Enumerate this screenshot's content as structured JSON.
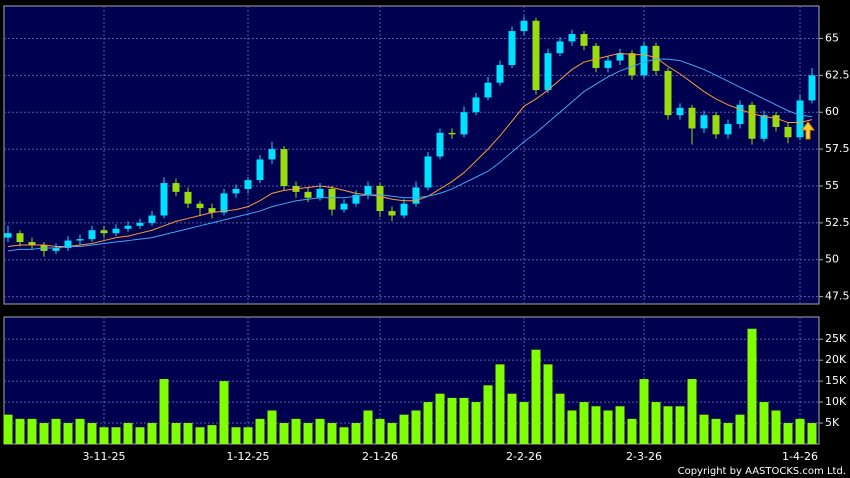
{
  "chart_data": [
    {
      "type": "candlestick",
      "categories": [
        null,
        null,
        null,
        null,
        null,
        null,
        null,
        null,
        "3-11-25",
        null,
        null,
        null,
        null,
        null,
        null,
        null,
        null,
        null,
        null,
        null,
        "1-12-25",
        null,
        null,
        null,
        null,
        null,
        null,
        null,
        null,
        null,
        null,
        "2-1-26",
        null,
        null,
        null,
        null,
        null,
        null,
        null,
        null,
        null,
        null,
        null,
        "2-2-26",
        null,
        null,
        null,
        null,
        null,
        null,
        null,
        null,
        null,
        "2-3-26",
        null,
        null,
        null,
        null,
        null,
        null,
        null,
        null,
        null,
        null,
        null,
        null,
        "1-4-26",
        null
      ],
      "up_color": "#00e0ff",
      "down_color": "#99dd11",
      "open": [
        51.5,
        51.8,
        51.2,
        51.0,
        50.6,
        50.8,
        51.3,
        51.4,
        52.0,
        51.8,
        52.1,
        52.3,
        52.5,
        53.0,
        55.2,
        54.6,
        53.8,
        53.5,
        53.2,
        54.5,
        54.8,
        55.4,
        56.8,
        57.5,
        55.0,
        54.6,
        54.2,
        54.8,
        53.4,
        53.8,
        54.4,
        55.0,
        53.3,
        53.0,
        53.8,
        54.9,
        57.0,
        58.6,
        58.5,
        60.0,
        61.0,
        62.0,
        63.2,
        65.5,
        66.2,
        61.5,
        64.0,
        64.8,
        65.3,
        64.5,
        63.0,
        63.5,
        64.0,
        62.5,
        64.5,
        62.8,
        59.8,
        60.3,
        58.9,
        59.8,
        58.5,
        59.2,
        60.5,
        58.2,
        59.8,
        59.0,
        58.3,
        60.8
      ],
      "high": [
        52.3,
        52.0,
        51.5,
        51.2,
        51.1,
        51.6,
        51.7,
        52.3,
        52.3,
        52.4,
        52.6,
        52.8,
        53.3,
        55.6,
        55.5,
        54.9,
        54.0,
        53.8,
        54.8,
        55.1,
        55.6,
        57.1,
        58.0,
        57.7,
        55.3,
        54.9,
        55.2,
        55.0,
        54.1,
        54.7,
        55.3,
        55.2,
        53.6,
        54.1,
        55.3,
        57.3,
        58.9,
        58.9,
        60.4,
        61.3,
        62.4,
        63.5,
        65.8,
        66.5,
        66.4,
        64.3,
        65.1,
        65.6,
        65.5,
        64.7,
        63.8,
        64.3,
        64.2,
        64.8,
        64.7,
        63.0,
        60.6,
        60.5,
        60.1,
        60.0,
        59.5,
        60.8,
        60.7,
        60.1,
        60.0,
        59.3,
        61.2,
        63.0
      ],
      "low": [
        51.2,
        50.9,
        50.7,
        50.2,
        50.4,
        50.6,
        51.0,
        51.2,
        51.5,
        51.6,
        51.9,
        52.1,
        52.3,
        52.8,
        54.3,
        53.5,
        53.0,
        52.8,
        53.0,
        54.2,
        54.5,
        55.2,
        56.5,
        54.7,
        54.2,
        53.9,
        54.0,
        53.0,
        53.2,
        53.6,
        54.1,
        52.9,
        52.6,
        52.8,
        53.6,
        54.7,
        56.8,
        58.2,
        58.3,
        59.8,
        60.8,
        61.8,
        63.0,
        65.2,
        61.2,
        61.3,
        63.8,
        64.5,
        64.2,
        62.7,
        62.7,
        63.2,
        62.2,
        62.3,
        62.5,
        59.5,
        59.5,
        57.8,
        58.6,
        58.2,
        58.2,
        58.9,
        57.8,
        58.0,
        58.7,
        57.9,
        58.1,
        60.6
      ],
      "close": [
        51.8,
        51.2,
        51.0,
        50.6,
        50.8,
        51.3,
        51.4,
        52.0,
        51.8,
        52.1,
        52.3,
        52.5,
        53.0,
        55.2,
        54.6,
        53.8,
        53.5,
        53.2,
        54.5,
        54.8,
        55.4,
        56.8,
        57.5,
        55.0,
        54.6,
        54.2,
        54.8,
        53.4,
        53.8,
        54.4,
        55.0,
        53.3,
        53.0,
        53.8,
        54.9,
        57.0,
        58.6,
        58.5,
        60.0,
        61.0,
        62.0,
        63.2,
        65.5,
        66.2,
        61.5,
        64.0,
        64.8,
        65.3,
        64.5,
        63.0,
        63.5,
        64.0,
        62.5,
        64.5,
        62.8,
        59.8,
        60.3,
        58.9,
        59.8,
        58.5,
        59.2,
        60.5,
        58.2,
        59.8,
        59.0,
        58.3,
        60.8,
        62.5
      ],
      "lines": [
        {
          "color": "#ff9933",
          "values": [
            50.9,
            51.0,
            51.0,
            51.0,
            50.9,
            50.9,
            51.0,
            51.1,
            51.3,
            51.5,
            51.6,
            51.8,
            52.0,
            52.3,
            52.6,
            52.8,
            53.0,
            53.2,
            53.3,
            53.4,
            53.6,
            54.0,
            54.5,
            54.7,
            54.8,
            54.9,
            55.0,
            54.9,
            54.7,
            54.5,
            54.4,
            54.3,
            54.1,
            54.0,
            54.0,
            54.3,
            54.8,
            55.3,
            55.9,
            56.7,
            57.5,
            58.4,
            59.4,
            60.4,
            60.9,
            61.5,
            62.2,
            62.9,
            63.4,
            63.6,
            63.8,
            64.0,
            63.9,
            63.9,
            63.7,
            63.1,
            62.6,
            62.0,
            61.4,
            60.9,
            60.5,
            60.2,
            59.9,
            59.7,
            59.6,
            59.3,
            59.3,
            59.5
          ]
        },
        {
          "color": "#3fa9f5",
          "values": [
            50.6,
            50.7,
            50.7,
            50.8,
            50.8,
            50.9,
            50.9,
            51.0,
            51.1,
            51.2,
            51.3,
            51.4,
            51.5,
            51.7,
            51.9,
            52.1,
            52.3,
            52.5,
            52.7,
            52.9,
            53.1,
            53.3,
            53.6,
            53.8,
            54.0,
            54.1,
            54.2,
            54.2,
            54.2,
            54.3,
            54.4,
            54.4,
            54.3,
            54.2,
            54.2,
            54.3,
            54.5,
            54.8,
            55.2,
            55.6,
            56.0,
            56.6,
            57.3,
            58.0,
            58.6,
            59.3,
            60.0,
            60.7,
            61.4,
            61.9,
            62.4,
            62.8,
            63.1,
            63.4,
            63.6,
            63.6,
            63.5,
            63.2,
            62.9,
            62.5,
            62.1,
            61.7,
            61.3,
            60.9,
            60.5,
            60.1,
            59.8,
            59.7
          ]
        }
      ],
      "ylim": [
        47.0,
        67.2
      ],
      "yticks": [
        47.5,
        50,
        52.5,
        55,
        57.5,
        60,
        62.5,
        65
      ],
      "grid": true
    },
    {
      "type": "bar",
      "color": "#80ff00",
      "values": [
        7,
        6,
        6,
        5,
        6,
        5,
        6,
        5,
        4,
        4,
        5,
        4,
        5,
        15.5,
        5,
        5,
        4,
        4.5,
        15,
        4,
        4,
        6,
        8,
        5,
        6,
        5,
        6,
        5,
        4,
        5,
        8,
        6,
        5,
        7,
        8,
        10,
        12,
        11,
        11,
        10,
        14,
        19,
        12,
        10,
        22.5,
        19,
        12,
        8,
        10,
        9,
        8,
        9,
        6,
        15.5,
        10,
        9,
        9,
        15.5,
        7,
        6,
        5,
        7,
        27.5,
        10,
        8,
        5,
        6,
        5
      ],
      "ylim": [
        0,
        30.3
      ],
      "yticks": [
        {
          "value": 5,
          "label": "5K"
        },
        {
          "value": 10,
          "label": "10K"
        },
        {
          "value": 15,
          "label": "15K"
        },
        {
          "value": 20,
          "label": "20K"
        },
        {
          "value": 25,
          "label": "25K"
        }
      ],
      "grid": true,
      "footer": "Copyright by AASTOCKS.com Ltd."
    }
  ]
}
